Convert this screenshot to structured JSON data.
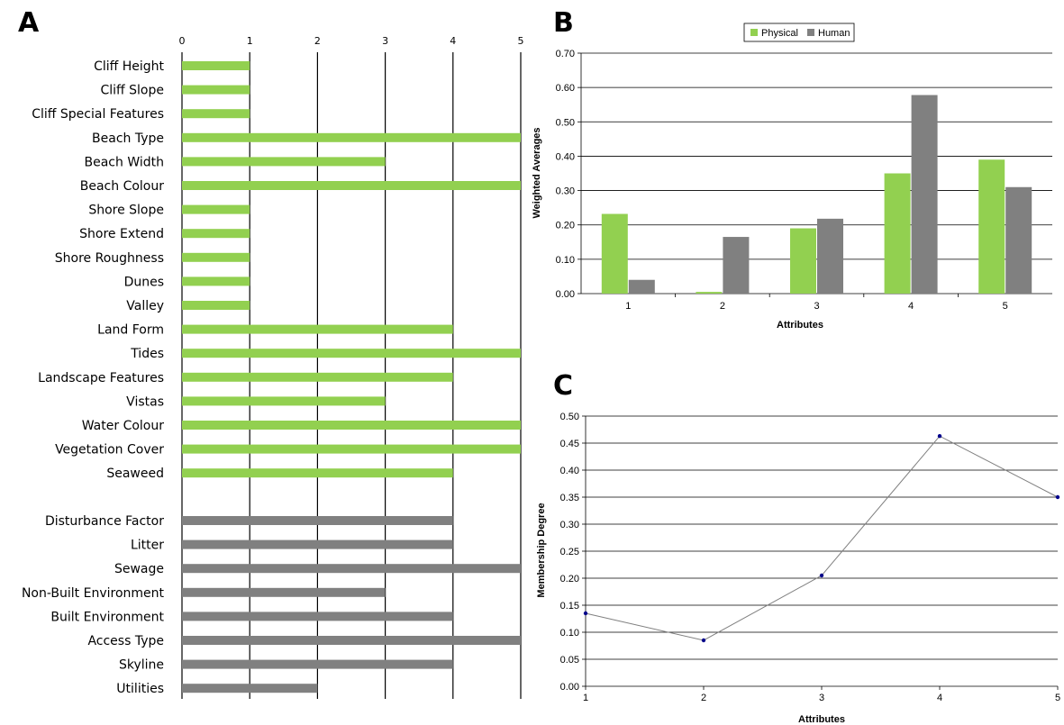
{
  "figure": {
    "panel_labels": [
      "A",
      "B",
      "C"
    ]
  },
  "chart_data": [
    {
      "panel": "A",
      "type": "bar",
      "orientation": "horizontal",
      "x_ticks": [
        "0",
        "1",
        "2",
        "3",
        "4",
        "5"
      ],
      "xlim": [
        0,
        5
      ],
      "colors": {
        "physical": "#92d050",
        "human": "#808080"
      },
      "groups": [
        {
          "color_key": "physical",
          "categories": [
            "Cliff Height",
            "Cliff Slope",
            "Cliff Special Features",
            "Beach Type",
            "Beach Width",
            "Beach Colour",
            "Shore Slope",
            "Shore Extend",
            "Shore Roughness",
            "Dunes",
            "Valley",
            "Land Form",
            "Tides",
            "Landscape Features",
            "Vistas",
            "Water Colour",
            "Vegetation Cover",
            "Seaweed"
          ],
          "values": [
            1,
            1,
            1,
            5,
            3,
            5,
            1,
            1,
            1,
            1,
            1,
            4,
            5,
            4,
            3,
            5,
            5,
            4
          ]
        },
        {
          "color_key": "human",
          "categories": [
            "Disturbance Factor",
            "Litter",
            "Sewage",
            "Non-Built Environment",
            "Built Environment",
            "Access Type",
            "Skyline",
            "Utilities"
          ],
          "values": [
            4,
            4,
            5,
            3,
            4,
            5,
            4,
            2
          ]
        }
      ]
    },
    {
      "panel": "B",
      "type": "bar",
      "categories": [
        "1",
        "2",
        "3",
        "4",
        "5"
      ],
      "series": [
        {
          "name": "Physical",
          "color": "#92d050",
          "values": [
            0.232,
            0.005,
            0.19,
            0.35,
            0.39
          ]
        },
        {
          "name": "Human",
          "color": "#808080",
          "values": [
            0.04,
            0.165,
            0.218,
            0.578,
            0.31
          ]
        }
      ],
      "xlabel": "Attributes",
      "ylabel": "Weighted Averages",
      "ylim": [
        0,
        0.7
      ],
      "y_ticks": [
        "0.00",
        "0.10",
        "0.20",
        "0.30",
        "0.40",
        "0.50",
        "0.60",
        "0.70"
      ],
      "legend": "top-center",
      "grid": true
    },
    {
      "panel": "C",
      "type": "line",
      "x": [
        1,
        2,
        3,
        4,
        5
      ],
      "series": [
        {
          "color": "#808080",
          "marker_color": "#00008b",
          "values": [
            0.135,
            0.085,
            0.205,
            0.463,
            0.35
          ]
        }
      ],
      "x_ticks": [
        "1",
        "2",
        "3",
        "4",
        "5"
      ],
      "xlabel": "Attributes",
      "ylabel": "Membership Degree",
      "ylim": [
        0,
        0.5
      ],
      "y_ticks": [
        "0.00",
        "0.05",
        "0.10",
        "0.15",
        "0.20",
        "0.25",
        "0.30",
        "0.35",
        "0.40",
        "0.45",
        "0.50"
      ],
      "grid": true
    }
  ]
}
